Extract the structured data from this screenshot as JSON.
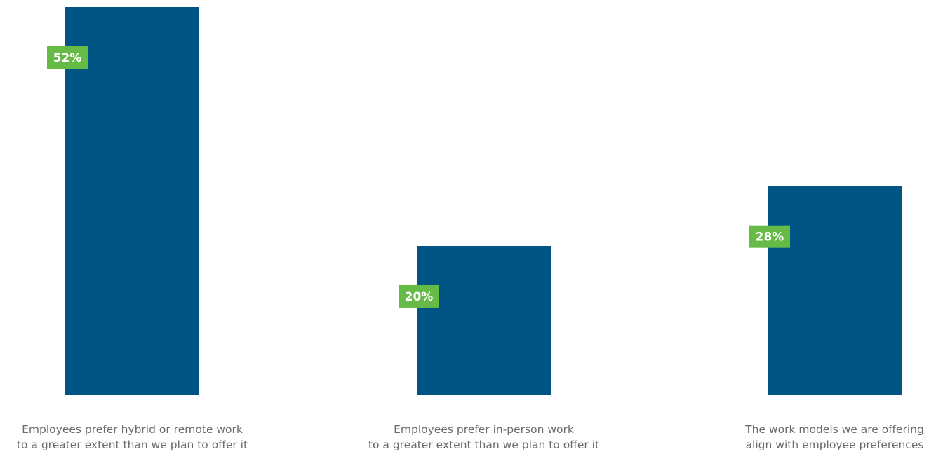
{
  "chart_data": {
    "type": "bar",
    "categories": [
      [
        "Employees prefer hybrid or remote work",
        "to a greater extent than we plan to offer it"
      ],
      [
        "Employees prefer in-person work",
        "to a greater extent than we plan to offer it"
      ],
      [
        "The work models we are offering",
        "align with employee preferences"
      ]
    ],
    "values": [
      52,
      20,
      28
    ],
    "value_labels": [
      "52%",
      "20%",
      "28%"
    ],
    "unit": "%",
    "ylim": [
      0,
      52
    ],
    "grid": false,
    "legend": "none",
    "colors": {
      "bar": "#005584",
      "label_bg": "#66bb46",
      "label_text": "#ffffff",
      "category_text": "#6b6b6b",
      "background": "#ffffff"
    }
  }
}
